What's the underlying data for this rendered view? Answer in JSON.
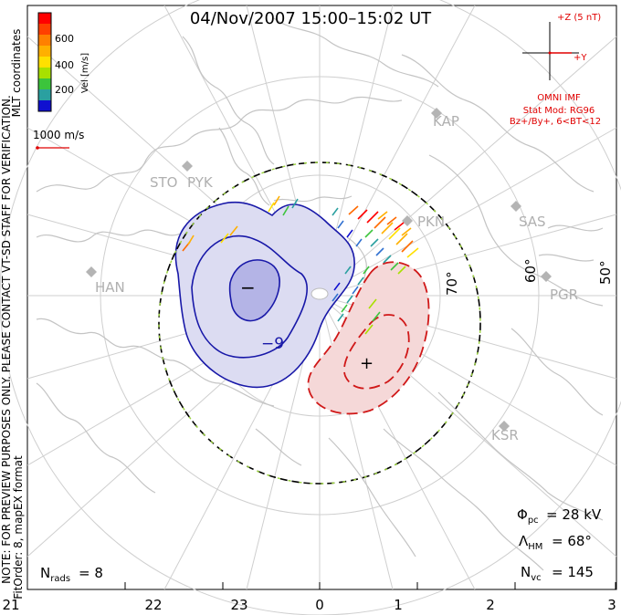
{
  "title": "04/Nov/2007  15:00–15:02  UT",
  "colorbar": {
    "label": "Vel [m/s]",
    "ticks": [
      "600",
      "400",
      "200"
    ],
    "colors": [
      "#ff0000",
      "#ff6a00",
      "#ffb000",
      "#ffe000",
      "#a8e000",
      "#3cc43c",
      "#2aa0a0",
      "#3070d0",
      "#1010d0"
    ]
  },
  "scale_vector_label": "1000 m/s",
  "side_notes": {
    "coordinates": "MLT coordinates",
    "preview_note": "NOTE: FOR PREVIEW PURPOSES ONLY. PLEASE CONTACT VT-SD STAFF FOR VERIFICATION.",
    "fit_info": "FitOrder: 8, mapEX format"
  },
  "imf": {
    "z_label": "+Z (5 nT)",
    "y_label": "+Y",
    "source": "OMNI IMF",
    "model": "Stat Mod: RG96",
    "bin": "Bz+/By+, 6<BT<12"
  },
  "radar_labels": [
    "KAP",
    "SAS",
    "PGR",
    "KSR",
    "PKN",
    "STO",
    "PYK",
    "HAN"
  ],
  "latitude_labels": [
    "70°",
    "60°",
    "50°"
  ],
  "contour_labels": [
    "−9",
    "−",
    "+"
  ],
  "stats": {
    "phi_label": "Φ",
    "phi_sub": "pc",
    "phi_value": "= 28 kV",
    "lambda_label": "Λ",
    "lambda_sub": "HM",
    "lambda_value": "= 68°",
    "nvc_label": "N",
    "nvc_sub": "vc",
    "nvc_value": "= 145",
    "nrads_label": "N",
    "nrads_sub": "rads",
    "nrads_value": "= 8"
  },
  "mlt_axis": [
    "21",
    "22",
    "23",
    "0",
    "1",
    "2",
    "3"
  ],
  "colors": {
    "negative_contour": "#1818a8",
    "positive_contour": "#d01818",
    "negative_fill": "#dcdcf2",
    "positive_fill": "#f5d8d8",
    "annotation": "#e00000",
    "map_lines": "#c8c8c8"
  }
}
